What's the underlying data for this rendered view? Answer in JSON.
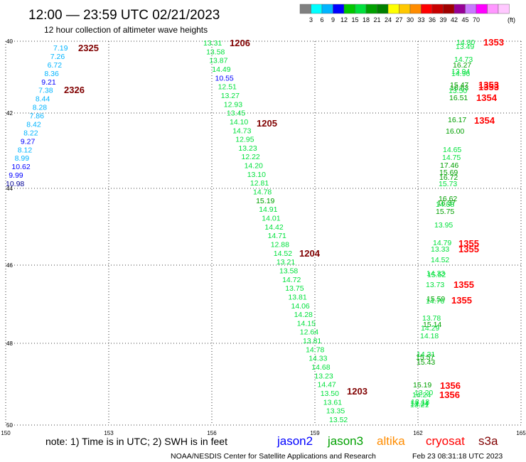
{
  "header": {
    "title": "12:00 — 23:59 UTC 02/21/2023",
    "subtitle": "12 hour collection of altimeter wave heights"
  },
  "legend": {
    "unit": "(ft)",
    "colors": [
      "#808080",
      "#00ffff",
      "#00b4ff",
      "#0000ff",
      "#00c800",
      "#00e13c",
      "#00a000",
      "#008000",
      "#ffff00",
      "#ffc800",
      "#ff8c00",
      "#ff0000",
      "#c80000",
      "#a00000",
      "#960096",
      "#c878ff",
      "#ff00ff",
      "#ff96ff",
      "#ffc8ff"
    ],
    "ticks": [
      "3",
      "6",
      "9",
      "12",
      "15",
      "18",
      "21",
      "24",
      "27",
      "30",
      "33",
      "36",
      "39",
      "42",
      "45",
      "70"
    ]
  },
  "axes": {
    "x_labels": [
      "150",
      "153",
      "156",
      "159",
      "162",
      "165"
    ],
    "y_labels": [
      "40",
      "42",
      "44",
      "46",
      "48",
      "50"
    ]
  },
  "satellite_colors": {
    "jason2": "#0000ff",
    "jason3": "#00a000",
    "altika": "#ff8c00",
    "cryosat": "#ff0000",
    "s3a": "#800000",
    "height_green": "#00e13c",
    "height_dgreen": "#00a000",
    "height_lblue": "#00b4ff",
    "height_blue": "#0000ff",
    "height_navy": "#000096",
    "pass_dred": "#800000",
    "pass_red": "#ff0000"
  },
  "passes": [
    {
      "label": "2325",
      "color": "dred"
    },
    {
      "label": "2326",
      "color": "dred"
    },
    {
      "label": "1206",
      "color": "dred"
    },
    {
      "label": "1205",
      "color": "dred"
    },
    {
      "label": "1204",
      "color": "dred"
    },
    {
      "label": "1203",
      "color": "dred"
    },
    {
      "label": "1353",
      "color": "red"
    },
    {
      "label": "1353",
      "color": "red"
    },
    {
      "label": "1353",
      "color": "red"
    },
    {
      "label": "1354",
      "color": "red"
    },
    {
      "label": "1354",
      "color": "red"
    },
    {
      "label": "1355",
      "color": "red"
    },
    {
      "label": "1355",
      "color": "red"
    },
    {
      "label": "1355",
      "color": "red"
    },
    {
      "label": "1355",
      "color": "red"
    },
    {
      "label": "1356",
      "color": "red"
    },
    {
      "label": "1356",
      "color": "red"
    }
  ],
  "heights_track_a": [
    {
      "v": "7.19",
      "c": "lblue"
    },
    {
      "v": "7.26",
      "c": "lblue"
    },
    {
      "v": "6.72",
      "c": "lblue"
    },
    {
      "v": "8.36",
      "c": "lblue"
    },
    {
      "v": "9.21",
      "c": "blue"
    },
    {
      "v": "7.38",
      "c": "lblue"
    },
    {
      "v": "8.44",
      "c": "lblue"
    },
    {
      "v": "8.28",
      "c": "lblue"
    },
    {
      "v": "7.86",
      "c": "lblue"
    },
    {
      "v": "8.42",
      "c": "lblue"
    },
    {
      "v": "8.22",
      "c": "lblue"
    },
    {
      "v": "9.27",
      "c": "blue"
    },
    {
      "v": "8.12",
      "c": "lblue"
    },
    {
      "v": "8.99",
      "c": "lblue"
    },
    {
      "v": "10.62",
      "c": "blue"
    },
    {
      "v": "9.99",
      "c": "blue"
    },
    {
      "v": "10.98",
      "c": "navy"
    }
  ],
  "heights_track_b": [
    {
      "v": "13.31",
      "c": "green"
    },
    {
      "v": "13.58",
      "c": "green"
    },
    {
      "v": "13.87",
      "c": "green"
    },
    {
      "v": "14.49",
      "c": "green"
    },
    {
      "v": "10.55",
      "c": "blue"
    },
    {
      "v": "12.51",
      "c": "green"
    },
    {
      "v": "13.27",
      "c": "green"
    },
    {
      "v": "12.93",
      "c": "green"
    },
    {
      "v": "13.45",
      "c": "green"
    },
    {
      "v": "14.10",
      "c": "green"
    },
    {
      "v": "14.73",
      "c": "green"
    },
    {
      "v": "12.95",
      "c": "green"
    },
    {
      "v": "13.23",
      "c": "green"
    },
    {
      "v": "12.22",
      "c": "green"
    },
    {
      "v": "14.20",
      "c": "green"
    },
    {
      "v": "13.10",
      "c": "green"
    },
    {
      "v": "12.81",
      "c": "green"
    },
    {
      "v": "14.78",
      "c": "green"
    },
    {
      "v": "15.19",
      "c": "dgreen"
    },
    {
      "v": "14.91",
      "c": "green"
    },
    {
      "v": "14.01",
      "c": "green"
    },
    {
      "v": "14.42",
      "c": "green"
    },
    {
      "v": "14.71",
      "c": "green"
    },
    {
      "v": "12.88",
      "c": "green"
    },
    {
      "v": "14.52",
      "c": "green"
    },
    {
      "v": "13.21",
      "c": "green"
    },
    {
      "v": "13.58",
      "c": "green"
    },
    {
      "v": "14.72",
      "c": "green"
    },
    {
      "v": "13.75",
      "c": "green"
    },
    {
      "v": "13.81",
      "c": "green"
    },
    {
      "v": "14.06",
      "c": "green"
    },
    {
      "v": "14.28",
      "c": "green"
    },
    {
      "v": "14.15",
      "c": "green"
    },
    {
      "v": "12.64",
      "c": "green"
    },
    {
      "v": "13.81",
      "c": "green"
    },
    {
      "v": "14.78",
      "c": "green"
    },
    {
      "v": "14.33",
      "c": "green"
    },
    {
      "v": "14.68",
      "c": "green"
    },
    {
      "v": "13.23",
      "c": "green"
    },
    {
      "v": "14.47",
      "c": "green"
    },
    {
      "v": "13.50",
      "c": "green"
    },
    {
      "v": "13.61",
      "c": "green"
    },
    {
      "v": "13.35",
      "c": "green"
    },
    {
      "v": "13.52",
      "c": "green"
    }
  ],
  "heights_track_c": [
    {
      "v": "14.80",
      "c": "green"
    },
    {
      "v": "13.49",
      "c": "green"
    },
    {
      "v": "14.73",
      "c": "green"
    },
    {
      "v": "16.27",
      "c": "dgreen"
    },
    {
      "v": "14.96",
      "c": "green"
    },
    {
      "v": "13.94",
      "c": "green"
    },
    {
      "v": "15.47",
      "c": "dgreen"
    },
    {
      "v": "16.63",
      "c": "dgreen"
    },
    {
      "v": "13.50",
      "c": "green"
    },
    {
      "v": "16.51",
      "c": "dgreen"
    },
    {
      "v": "16.17",
      "c": "dgreen"
    },
    {
      "v": "16.00",
      "c": "dgreen"
    },
    {
      "v": "14.65",
      "c": "green"
    },
    {
      "v": "14.75",
      "c": "green"
    },
    {
      "v": "17.46",
      "c": "dgreen"
    },
    {
      "v": "15.69",
      "c": "dgreen"
    },
    {
      "v": "16.72",
      "c": "dgreen"
    },
    {
      "v": "15.73",
      "c": "green"
    },
    {
      "v": "16.62",
      "c": "dgreen"
    },
    {
      "v": "16.37",
      "c": "dgreen"
    },
    {
      "v": "14.58",
      "c": "green"
    },
    {
      "v": "15.75",
      "c": "dgreen"
    },
    {
      "v": "13.95",
      "c": "green"
    },
    {
      "v": "14.79",
      "c": "green"
    },
    {
      "v": "13.33",
      "c": "green"
    },
    {
      "v": "14.52",
      "c": "green"
    },
    {
      "v": "14.33",
      "c": "green"
    },
    {
      "v": "15.52",
      "c": "green"
    },
    {
      "v": "13.73",
      "c": "green"
    },
    {
      "v": "15.59",
      "c": "dgreen"
    },
    {
      "v": "14.76",
      "c": "green"
    },
    {
      "v": "13.78",
      "c": "green"
    },
    {
      "v": "15.14",
      "c": "dgreen"
    },
    {
      "v": "14.29",
      "c": "green"
    },
    {
      "v": "14.18",
      "c": "green"
    },
    {
      "v": "14.31",
      "c": "green"
    },
    {
      "v": "15.57",
      "c": "dgreen"
    },
    {
      "v": "15.43",
      "c": "dgreen"
    },
    {
      "v": "15.19",
      "c": "dgreen"
    },
    {
      "v": "14.24",
      "c": "green"
    },
    {
      "v": "13.20",
      "c": "green"
    },
    {
      "v": "13.18",
      "c": "green"
    },
    {
      "v": "13.21",
      "c": "green"
    },
    {
      "v": "13.24",
      "c": "green"
    }
  ],
  "footer": {
    "note": "note:  1) Time is in UTC; 2) SWH is in feet",
    "sat_jason2": "jason2",
    "sat_jason3": "jason3",
    "sat_altika": "altika",
    "sat_cryosat": "cryosat",
    "sat_s3a": "s3a",
    "credit": "NOAA/NESDIS Center for Satellite Applications and Research",
    "timestamp": "Feb 23 08:31:18 UTC 2023"
  }
}
